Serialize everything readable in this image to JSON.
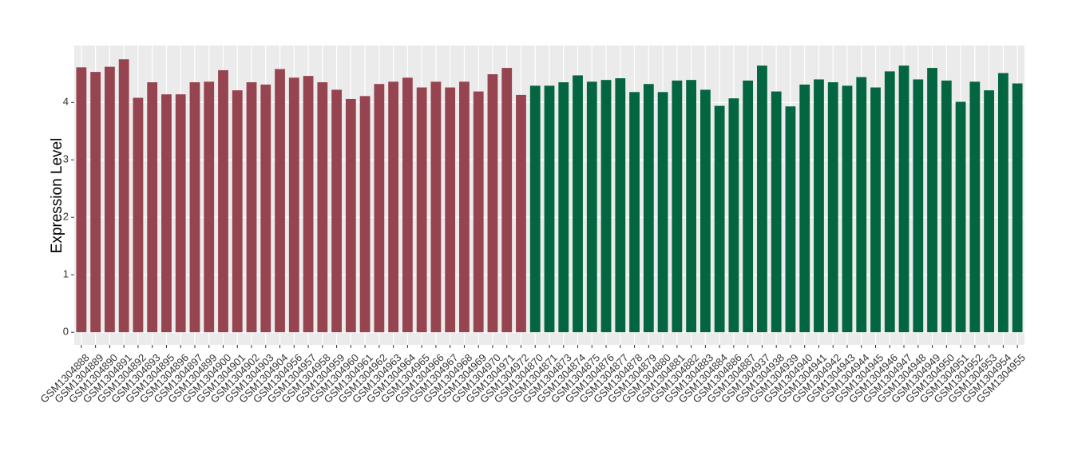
{
  "chart_data": {
    "type": "bar",
    "y_label": "Expression Level",
    "ylim": [
      -0.22,
      4.99
    ],
    "yticks": [
      0,
      1,
      2,
      3,
      4
    ],
    "grid": true,
    "groups": [
      {
        "color": "#96444f",
        "categories": [
          "GSM1304888",
          "GSM1304889",
          "GSM1304890",
          "GSM1304891",
          "GSM1304892",
          "GSM1304893",
          "GSM1304895",
          "GSM1304896",
          "GSM1304897",
          "GSM1304899",
          "GSM1304900",
          "GSM1304901",
          "GSM1304902",
          "GSM1304903",
          "GSM1304904",
          "GSM1304956",
          "GSM1304957",
          "GSM1304958",
          "GSM1304959",
          "GSM1304960",
          "GSM1304961",
          "GSM1304962",
          "GSM1304963",
          "GSM1304964",
          "GSM1304965",
          "GSM1304966",
          "GSM1304967",
          "GSM1304968",
          "GSM1304969",
          "GSM1304970",
          "GSM1304971",
          "GSM1304972"
        ],
        "values": [
          4.61,
          4.53,
          4.62,
          4.75,
          4.08,
          4.35,
          4.14,
          4.14,
          4.35,
          4.36,
          4.56,
          4.21,
          4.35,
          4.31,
          4.58,
          4.43,
          4.46,
          4.35,
          4.22,
          4.06,
          4.11,
          4.32,
          4.36,
          4.43,
          4.26,
          4.36,
          4.26,
          4.36,
          4.19,
          4.49,
          4.6,
          4.13
        ]
      },
      {
        "color": "#036640",
        "categories": [
          "GSM1304870",
          "GSM1304871",
          "GSM1304873",
          "GSM1304874",
          "GSM1304875",
          "GSM1304876",
          "GSM1304877",
          "GSM1304878",
          "GSM1304879",
          "GSM1304880",
          "GSM1304881",
          "GSM1304882",
          "GSM1304883",
          "GSM1304884",
          "GSM1304886",
          "GSM1304887",
          "GSM1304937",
          "GSM1304938",
          "GSM1304939",
          "GSM1304940",
          "GSM1304941",
          "GSM1304942",
          "GSM1304943",
          "GSM1304944",
          "GSM1304945",
          "GSM1304946",
          "GSM1304947",
          "GSM1304948",
          "GSM1304949",
          "GSM1304950",
          "GSM1304951",
          "GSM1304952",
          "GSM1304953",
          "GSM1304954",
          "GSM1304955"
        ],
        "values": [
          4.29,
          4.29,
          4.35,
          4.47,
          4.36,
          4.39,
          4.42,
          4.18,
          4.32,
          4.18,
          4.38,
          4.39,
          4.22,
          3.94,
          4.07,
          4.38,
          4.64,
          4.19,
          3.93,
          4.31,
          4.4,
          4.35,
          4.29,
          4.44,
          4.26,
          4.54,
          4.64,
          4.4,
          4.6,
          4.38,
          4.01,
          4.36,
          4.21,
          4.51,
          4.33
        ]
      }
    ]
  }
}
